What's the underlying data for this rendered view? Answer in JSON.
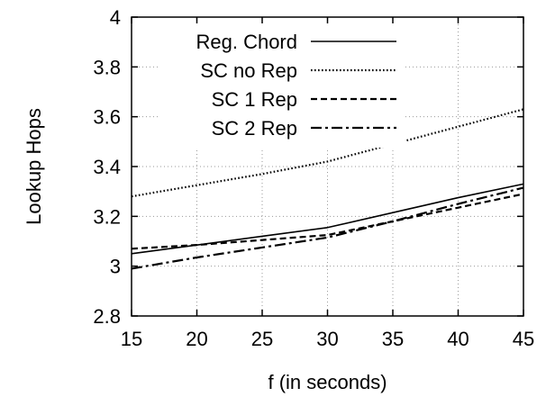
{
  "chart_data": {
    "type": "line",
    "title": "",
    "xlabel": "f (in seconds)",
    "ylabel": "Lookup Hops",
    "xlim": [
      15,
      45
    ],
    "ylim": [
      2.8,
      4
    ],
    "xticks": [
      15,
      20,
      25,
      30,
      35,
      40,
      45
    ],
    "yticks": [
      2.8,
      3,
      3.2,
      3.4,
      3.6,
      3.8,
      4
    ],
    "ytick_labels": [
      "2.8",
      "3",
      "3.2",
      "3.4",
      "3.6",
      "3.8",
      "4"
    ],
    "grid": true,
    "legend_position": "top-left",
    "x": [
      15,
      20,
      25,
      30,
      35,
      40,
      45
    ],
    "series": [
      {
        "name": "Reg. Chord",
        "style": "solid",
        "values": [
          3.05,
          3.085,
          3.12,
          3.155,
          3.215,
          3.275,
          3.33
        ]
      },
      {
        "name": "SC no Rep",
        "style": "dotted",
        "values": [
          3.28,
          3.325,
          3.37,
          3.42,
          3.49,
          3.56,
          3.63
        ]
      },
      {
        "name": "SC 1 Rep",
        "style": "dashed",
        "values": [
          3.07,
          3.085,
          3.105,
          3.125,
          3.18,
          3.235,
          3.29
        ]
      },
      {
        "name": "SC 2 Rep",
        "style": "dashdot",
        "values": [
          2.99,
          3.035,
          3.075,
          3.115,
          3.18,
          3.25,
          3.315
        ]
      }
    ]
  },
  "colors": {
    "line": "#000000",
    "grid": "#9a9a9a",
    "background": "#ffffff"
  }
}
